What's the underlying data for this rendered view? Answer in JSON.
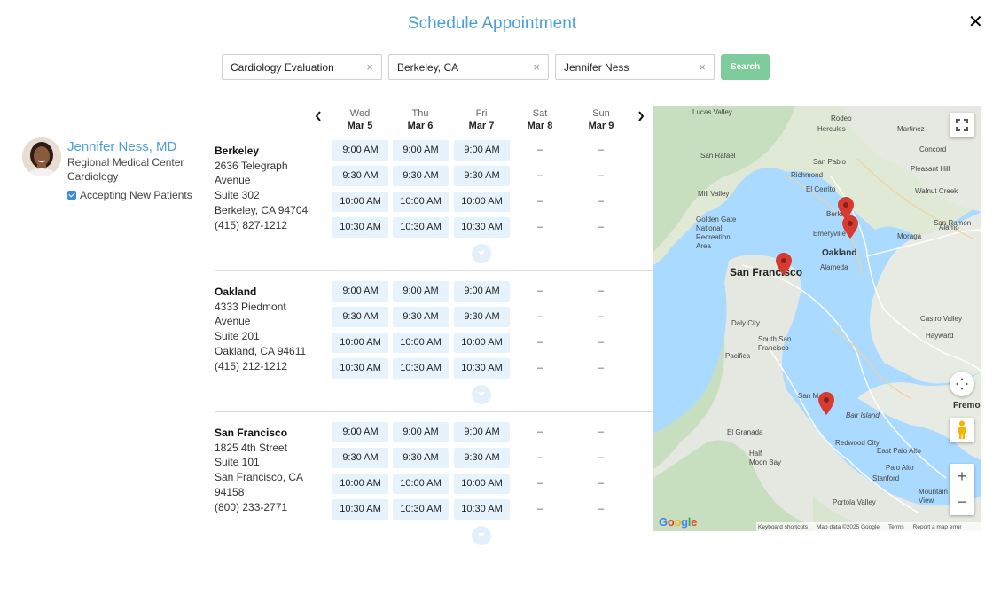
{
  "modal": {
    "title": "Schedule Appointment",
    "close_icon": "close-icon"
  },
  "search": {
    "specialty": "Cardiology Evaluation",
    "location": "Berkeley, CA",
    "provider": "Jennifer Ness",
    "clear_glyph": "×",
    "button_label": "Search",
    "button_color": "#7ecb9b"
  },
  "doctor": {
    "name": "Jennifer Ness, MD",
    "organization": "Regional Medical Center",
    "specialty": "Cardiology",
    "accepting": "Accepting New Patients",
    "name_color": "#4a9fd8"
  },
  "calendar": {
    "prev": "‹",
    "next": "›",
    "days": [
      {
        "name": "Wed",
        "date": "Mar 5"
      },
      {
        "name": "Thu",
        "date": "Mar 6"
      },
      {
        "name": "Fri",
        "date": "Mar 7"
      },
      {
        "name": "Sat",
        "date": "Mar 8"
      },
      {
        "name": "Sun",
        "date": "Mar 9"
      }
    ],
    "times": [
      "9:00 AM",
      "9:30 AM",
      "10:00 AM",
      "10:30 AM"
    ],
    "unavailable": "–"
  },
  "locations": [
    {
      "name": "Berkeley",
      "lines": [
        "2636 Telegraph",
        "Avenue",
        "Suite 302",
        "Berkeley, CA 94704",
        "(415) 827-1212"
      ]
    },
    {
      "name": "Oakland",
      "lines": [
        "4333 Piedmont",
        "Avenue",
        "Suite 201",
        "Oakland, CA 94611",
        "(415) 212-1212"
      ]
    },
    {
      "name": "San Francisco",
      "lines": [
        "1825 4th Street",
        "Suite 101",
        "San Francisco, CA",
        "94158",
        "(800) 233-2771"
      ]
    }
  ],
  "map": {
    "labels": {
      "san_francisco": "San Francisco",
      "oakland": "Oakland",
      "lucas_valley": "Lucas Valley",
      "rodeo": "Rodeo",
      "hercules": "Hercules",
      "martinez": "Martinez",
      "san_rafael": "San Rafael",
      "san_pablo": "San Pablo",
      "richmond": "Richmond",
      "el_cerrito": "El Cerrito",
      "concord": "Concord",
      "pleasant_hill": "Pleasant Hill",
      "mill_valley": "Mill Valley",
      "walnut_creek": "Walnut Creek",
      "golden_gate": "Golden Gate\nNational\nRecreation\nArea",
      "berkeley": "Berke",
      "emeryville": "Emeryville",
      "moraga": "Moraga",
      "alamo": "Alamo",
      "alameda": "Alameda",
      "castro_valley": "Castro Valley",
      "daly_city": "Daly City",
      "south_sf": "South San\nFrancisco",
      "hayward": "Hayward",
      "pacifica": "Pacifica",
      "san_mateo": "San M",
      "bair_island": "Bair Island",
      "fremont": "Fremo",
      "el_granada": "El Granada",
      "redwood_city": "Redwood City",
      "half_moon_bay": "Half\nMoon Bay",
      "east_palo_alto": "East Palo Alto",
      "palo_alto": "Palo Alto",
      "stanford": "Stanford",
      "mountain_view": "Mountain\nView",
      "portola_valley": "Portola Valley",
      "san_ramon": "San Ramon"
    },
    "fullscreen_icon": "fullscreen-icon",
    "zoom_in": "+",
    "zoom_out": "−",
    "google": "Google",
    "footer": [
      "Keyboard shortcuts",
      "Map data ©2025 Google",
      "Terms",
      "Report a map error"
    ]
  }
}
